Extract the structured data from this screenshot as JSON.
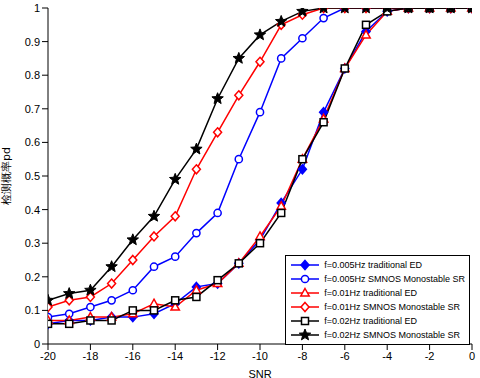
{
  "chart_data": {
    "type": "line",
    "x_label": "SNR",
    "y_label": "检测概率pd",
    "x": [
      -20,
      -19,
      -18,
      -17,
      -16,
      -15,
      -14,
      -13,
      -12,
      -11,
      -10,
      -9,
      -8,
      -7,
      -6,
      -5,
      -4,
      -3,
      -2,
      -1,
      0
    ],
    "xlim": [
      -20,
      0
    ],
    "xticks": [
      -20,
      -18,
      -16,
      -14,
      -12,
      -10,
      -8,
      -6,
      -4,
      -2,
      0
    ],
    "ylim": [
      0,
      1
    ],
    "yticks": [
      0,
      0.1,
      0.2,
      0.3,
      0.4,
      0.5,
      0.6,
      0.7,
      0.8,
      0.9,
      1
    ],
    "grid": false,
    "legend": "lower right",
    "series": [
      {
        "name": "f=0.005Hz traditional ED",
        "color": "#0000ff",
        "marker": "filled_diamond",
        "line_style": "solid",
        "values": [
          0.06,
          0.07,
          0.07,
          0.08,
          0.08,
          0.09,
          0.12,
          0.17,
          0.18,
          0.24,
          0.31,
          0.42,
          0.52,
          0.69,
          0.82,
          0.93,
          0.99,
          1,
          1,
          1,
          1
        ]
      },
      {
        "name": "f=0.005Hz SMNOS Monostable SR",
        "color": "#0000ff",
        "marker": "circle",
        "line_style": "solid",
        "values": [
          0.08,
          0.09,
          0.11,
          0.13,
          0.16,
          0.23,
          0.26,
          0.33,
          0.39,
          0.55,
          0.69,
          0.85,
          0.91,
          0.97,
          1,
          1,
          1,
          1,
          1,
          1,
          1
        ]
      },
      {
        "name": "f=0.01Hz traditional ED",
        "color": "#ff0000",
        "marker": "triangle",
        "line_style": "solid",
        "values": [
          0.07,
          0.07,
          0.08,
          0.08,
          0.09,
          0.12,
          0.11,
          0.16,
          0.18,
          0.24,
          0.32,
          0.41,
          0.55,
          0.67,
          0.82,
          0.92,
          0.99,
          1,
          1,
          1,
          1
        ]
      },
      {
        "name": "f=0.01Hz SMNOS Monostable SR",
        "color": "#ff0000",
        "marker": "diamond",
        "line_style": "solid",
        "values": [
          0.11,
          0.13,
          0.14,
          0.18,
          0.25,
          0.32,
          0.38,
          0.52,
          0.63,
          0.74,
          0.84,
          0.95,
          0.98,
          1,
          1,
          1,
          1,
          1,
          1,
          1,
          1
        ]
      },
      {
        "name": "f=0.02Hz traditional ED",
        "color": "#000000",
        "marker": "square",
        "line_style": "solid",
        "values": [
          0.06,
          0.06,
          0.07,
          0.07,
          0.1,
          0.1,
          0.13,
          0.14,
          0.19,
          0.24,
          0.3,
          0.39,
          0.55,
          0.66,
          0.82,
          0.95,
          0.99,
          1,
          1,
          1,
          1
        ]
      },
      {
        "name": "f=0.02Hz SMNOS Monostable SR",
        "color": "#000000",
        "marker": "filled_star",
        "line_style": "solid",
        "values": [
          0.13,
          0.15,
          0.16,
          0.23,
          0.31,
          0.38,
          0.49,
          0.58,
          0.73,
          0.85,
          0.92,
          0.96,
          0.99,
          1,
          1,
          1,
          1,
          1,
          1,
          1,
          1
        ]
      }
    ]
  }
}
